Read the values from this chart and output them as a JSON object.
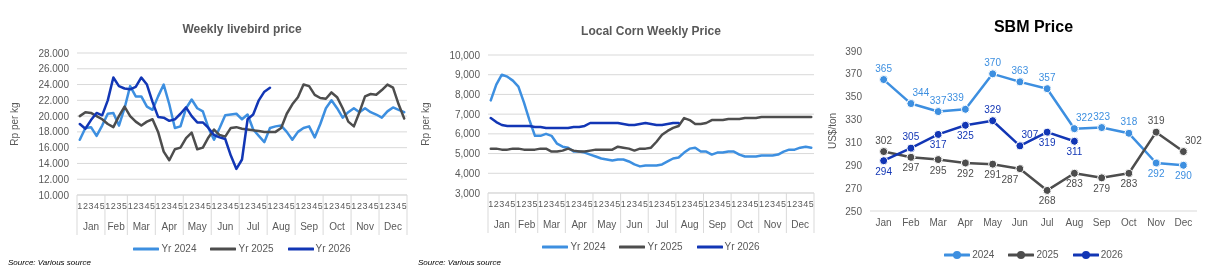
{
  "chart_data": [
    {
      "type": "line",
      "title": "Weekly livebird price",
      "ylabel": "Rp per kg",
      "categories": [
        "1",
        "2",
        "3",
        "4",
        "5",
        "1",
        "2",
        "3",
        "5",
        "1",
        "2",
        "3",
        "4",
        "5",
        "1",
        "2",
        "3",
        "4",
        "5",
        "1",
        "2",
        "3",
        "4",
        "5",
        "1",
        "2",
        "3",
        "4",
        "5",
        "1",
        "2",
        "3",
        "4",
        "5",
        "1",
        "2",
        "3",
        "4",
        "5",
        "1",
        "2",
        "3",
        "4",
        "5",
        "1",
        "2",
        "3",
        "4",
        "5",
        "1",
        "2",
        "3",
        "4",
        "5",
        "1",
        "2",
        "3",
        "4",
        "5"
      ],
      "annotations": [
        "Jan",
        "Feb",
        "Mar",
        "Apr",
        "May",
        "Jun",
        "Jul",
        "Aug",
        "Sep",
        "Oct",
        "Nov",
        "Dec",
        "Source: Various source"
      ],
      "series": [
        {
          "name": "Yr 2024",
          "color": "#3d8fe0",
          "values": [
            17.0,
            18.5,
            18.6,
            17.5,
            18.8,
            20.3,
            20.4,
            18.8,
            21.0,
            23.8,
            22.5,
            22.5,
            21.2,
            20.8,
            22.5,
            24.0,
            21.5,
            18.5,
            18.7,
            21.0,
            22.1,
            21.0,
            20.6,
            18.5,
            17.0,
            18.5,
            20.1,
            20.2,
            20.3,
            19.6,
            20.2,
            18.3,
            17.5,
            16.7,
            18.5,
            18.7,
            18.8,
            18.0,
            17.0,
            18.0,
            18.5,
            18.7,
            17.3,
            19.0,
            21.0,
            22.0,
            21.0,
            19.8,
            20.5,
            21.0,
            20.5,
            21.0,
            20.5,
            20.2,
            19.8,
            20.6,
            21.1,
            20.8,
            20.5
          ]
        },
        {
          "name": "Yr 2025",
          "color": "#4d4d4d",
          "values": [
            20.0,
            20.5,
            20.4,
            20.0,
            19.6,
            19.0,
            18.6,
            20.0,
            21.2,
            20.0,
            19.3,
            18.8,
            19.3,
            19.6,
            18.0,
            15.5,
            14.4,
            15.8,
            16.0,
            17.2,
            17.9,
            15.8,
            16.0,
            17.3,
            18.3,
            17.6,
            17.4,
            18.5,
            18.6,
            18.4,
            18.3,
            18.2,
            18.1,
            18.0,
            18.0,
            18.0,
            18.5,
            20.3,
            21.5,
            22.4,
            24.0,
            23.8,
            22.7,
            22.3,
            22.2,
            23.0,
            22.4,
            21.0,
            19.3,
            18.7,
            20.5,
            22.5,
            22.8,
            22.7,
            23.3,
            24.0,
            23.6,
            21.5,
            19.7
          ]
        },
        {
          "name": "Yr 2026",
          "color": "#1236b5",
          "values": [
            19.0,
            18.4,
            19.5,
            20.4,
            20.1,
            22.0,
            24.9,
            23.8,
            23.5,
            23.4,
            23.7,
            24.9,
            24.0,
            21.8,
            19.9,
            19.8,
            19.4,
            19.6,
            20.3,
            21.1,
            20.0,
            19.2,
            19.2,
            18.5,
            17.6,
            17.3,
            17.1,
            15.0,
            13.3,
            14.5,
            19.6,
            20.2,
            22.0,
            23.1,
            23.6,
            null,
            null,
            null,
            null,
            null,
            null,
            null,
            null,
            null,
            null,
            null,
            null,
            null,
            null,
            null,
            null,
            null,
            null,
            null,
            null,
            null,
            null,
            null,
            null
          ]
        }
      ],
      "ylim": [
        10,
        28
      ],
      "yticks": [
        {
          "value": 10,
          "label": "10.000"
        },
        {
          "value": 12,
          "label": "12.000"
        },
        {
          "value": 14,
          "label": "14.000"
        },
        {
          "value": 16,
          "label": "16.000"
        },
        {
          "value": 18,
          "label": "18.000"
        },
        {
          "value": 20,
          "label": "20.000"
        },
        {
          "value": 22,
          "label": "22.000"
        },
        {
          "value": 24,
          "label": "24.000"
        },
        {
          "value": 26,
          "label": "26.000"
        },
        {
          "value": 28,
          "label": "28.000"
        }
      ],
      "grid": "y",
      "legend": "bottom"
    },
    {
      "type": "line",
      "title": "Local Corn Weekly Price",
      "ylabel": "Rp per kg",
      "categories": [
        "1",
        "2",
        "3",
        "4",
        "5",
        "1",
        "2",
        "3",
        "5",
        "1",
        "2",
        "3",
        "4",
        "5",
        "1",
        "2",
        "3",
        "4",
        "5",
        "1",
        "2",
        "3",
        "4",
        "5",
        "1",
        "2",
        "3",
        "4",
        "5",
        "1",
        "2",
        "3",
        "4",
        "5",
        "1",
        "2",
        "3",
        "4",
        "5",
        "1",
        "2",
        "3",
        "4",
        "5",
        "1",
        "2",
        "3",
        "4",
        "5",
        "1",
        "2",
        "3",
        "4",
        "5",
        "1",
        "2",
        "3",
        "4",
        "5"
      ],
      "annotations": [
        "Jan",
        "Feb",
        "Mar",
        "Apr",
        "May",
        "Jun",
        "Jul",
        "Aug",
        "Sep",
        "Oct",
        "Nov",
        "Dec",
        "Source: Various source"
      ],
      "series": [
        {
          "name": "Yr 2024",
          "color": "#3d8fe0",
          "values": [
            7700,
            8500,
            9000,
            8900,
            8700,
            8400,
            7600,
            6700,
            5900,
            5900,
            6000,
            5900,
            5500,
            5350,
            5300,
            5100,
            5100,
            5050,
            4950,
            4850,
            4750,
            4700,
            4650,
            4700,
            4700,
            4600,
            4450,
            4350,
            4400,
            4400,
            4400,
            4450,
            4600,
            4750,
            4800,
            5050,
            5250,
            5300,
            5100,
            5100,
            4950,
            5050,
            5050,
            5100,
            5100,
            4950,
            4850,
            4850,
            4850,
            4900,
            4900,
            4900,
            4950,
            5100,
            5200,
            5200,
            5300,
            5350,
            5300
          ]
        },
        {
          "name": "Yr 2025",
          "color": "#4d4d4d",
          "values": [
            5250,
            5250,
            5200,
            5200,
            5250,
            5250,
            5200,
            5200,
            5200,
            5250,
            5250,
            5100,
            5100,
            5150,
            5250,
            5150,
            5100,
            5100,
            5150,
            5200,
            5200,
            5200,
            5200,
            5350,
            5300,
            5250,
            5150,
            5250,
            5250,
            5300,
            5600,
            5950,
            6150,
            6300,
            6400,
            6800,
            6700,
            6500,
            6500,
            6550,
            6700,
            6700,
            6700,
            6750,
            6750,
            6750,
            6800,
            6800,
            6800,
            6850,
            6850,
            6850,
            6850,
            6850,
            6850,
            6850,
            6850,
            6850,
            6850
          ]
        },
        {
          "name": "Yr 2026",
          "color": "#1236b5",
          "values": [
            6800,
            6600,
            6450,
            6400,
            6400,
            6400,
            6400,
            6400,
            6350,
            6350,
            6300,
            6300,
            6300,
            6300,
            6300,
            6350,
            6350,
            6400,
            6550,
            6550,
            6550,
            6550,
            6550,
            6550,
            6500,
            6450,
            6450,
            6500,
            6550,
            6500,
            6450,
            6450,
            6500,
            6550,
            6550,
            null,
            null,
            null,
            null,
            null,
            null,
            null,
            null,
            null,
            null,
            null,
            null,
            null,
            null,
            null,
            null,
            null,
            null,
            null,
            null,
            null,
            null,
            null,
            null
          ]
        }
      ],
      "ylim": [
        3000,
        10000
      ],
      "yticks": [
        {
          "value": 3000,
          "label": "3,000"
        },
        {
          "value": 4000,
          "label": "4,000"
        },
        {
          "value": 5000,
          "label": "5,000"
        },
        {
          "value": 6000,
          "label": "6,000"
        },
        {
          "value": 7000,
          "label": "7,000"
        },
        {
          "value": 8000,
          "label": "8,000"
        },
        {
          "value": 9000,
          "label": "9,000"
        },
        {
          "value": 10000,
          "label": "10,000"
        }
      ],
      "grid": "y",
      "legend": "bottom"
    },
    {
      "type": "line",
      "title": "SBM Price",
      "ylabel": "US$/ton",
      "categories": [
        "Jan",
        "Feb",
        "Mar",
        "Apr",
        "May",
        "Jun",
        "Jul",
        "Aug",
        "Sep",
        "Oct",
        "Nov",
        "Dec"
      ],
      "series": [
        {
          "name": "2024",
          "color": "#3d8fe0",
          "values": [
            365,
            344,
            337,
            339,
            370,
            363,
            357,
            322,
            323,
            318,
            292,
            290
          ]
        },
        {
          "name": "2025",
          "color": "#4d4d4d",
          "values": [
            302,
            297,
            295,
            292,
            291,
            287,
            268,
            283,
            279,
            283,
            319,
            302
          ]
        },
        {
          "name": "2026",
          "color": "#1236b5",
          "values": [
            294,
            305,
            317,
            325,
            329,
            307,
            319,
            311,
            null,
            null,
            null,
            null
          ]
        }
      ],
      "ylim": [
        250,
        390
      ],
      "yticks": [
        250,
        270,
        290,
        310,
        330,
        350,
        370,
        390
      ],
      "marker": "circle",
      "data_labels": true,
      "legend": "bottom"
    }
  ]
}
